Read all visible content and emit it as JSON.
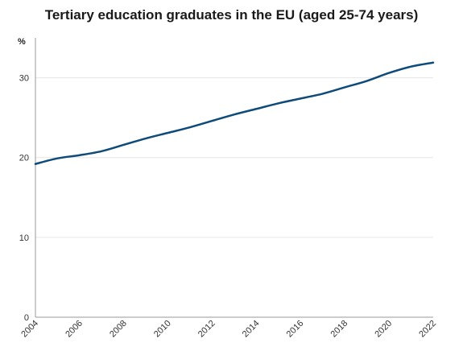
{
  "chart_data": {
    "type": "line",
    "title": "Tertiary education graduates in the EU (aged 25-74 years)",
    "ylabel": "%",
    "xlabel": "",
    "x": [
      2004,
      2005,
      2006,
      2007,
      2008,
      2009,
      2010,
      2011,
      2012,
      2013,
      2014,
      2015,
      2016,
      2017,
      2018,
      2019,
      2020,
      2021,
      2022
    ],
    "x_tick_labels": [
      "2004",
      "2006",
      "2008",
      "2010",
      "2012",
      "2014",
      "2016",
      "2018",
      "2020",
      "2022"
    ],
    "y_ticks": [
      0,
      10,
      20,
      30
    ],
    "ylim": [
      0,
      35
    ],
    "xlim": [
      2004,
      2022
    ],
    "series": [
      {
        "values": [
          19.2,
          19.9,
          20.3,
          20.8,
          21.6,
          22.4,
          23.1,
          23.8,
          24.6,
          25.4,
          26.1,
          26.8,
          27.4,
          28.0,
          28.8,
          29.6,
          30.6,
          31.4,
          31.9
        ],
        "color": "#0e4a7a"
      }
    ],
    "grid": true,
    "legend": false
  }
}
